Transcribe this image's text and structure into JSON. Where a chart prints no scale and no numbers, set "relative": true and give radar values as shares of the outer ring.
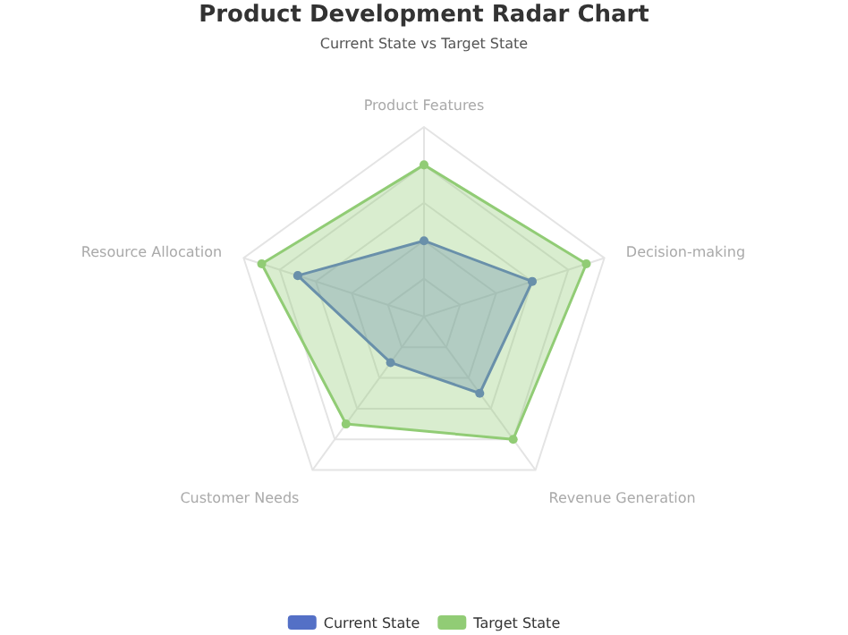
{
  "chart_data": {
    "type": "radar",
    "title": "Product Development Radar Chart",
    "subtitle": "Current State vs Target State",
    "relative": true,
    "categories": [
      "Product Features",
      "Decision-making",
      "Revenue Generation",
      "Customer Needs",
      "Resource Allocation"
    ],
    "legend": "bottom",
    "marker": "circle",
    "grid": true,
    "series": [
      {
        "name": "Current State",
        "color": "#5470c6",
        "values": [
          0.4,
          0.6,
          0.5,
          0.3,
          0.7
        ]
      },
      {
        "name": "Target State",
        "color": "#91cc75",
        "values": [
          0.8,
          0.9,
          0.8,
          0.7,
          0.9
        ]
      }
    ]
  }
}
